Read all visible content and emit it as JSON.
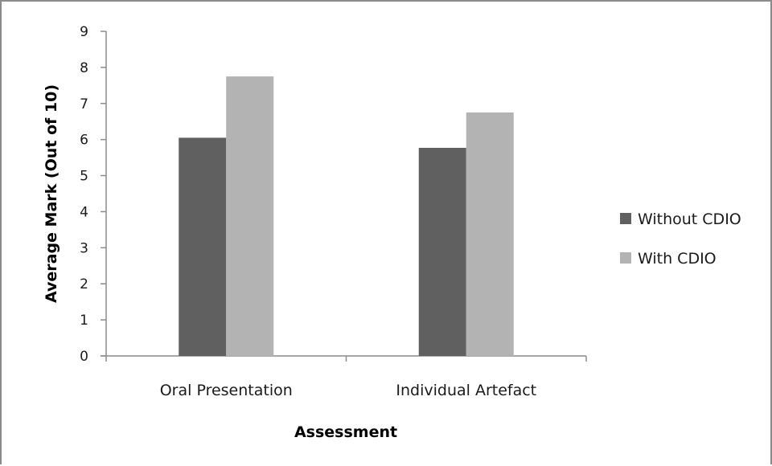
{
  "chart_data": {
    "type": "bar",
    "title": "",
    "xlabel": "Assessment",
    "ylabel": "Average Mark (Out of 10)",
    "ylim": [
      0,
      9
    ],
    "yticks": [
      0,
      1,
      2,
      3,
      4,
      5,
      6,
      7,
      8,
      9
    ],
    "categories": [
      "Oral Presentation",
      "Individual Artefact"
    ],
    "series": [
      {
        "name": "Without CDIO",
        "color": "#606060",
        "values": [
          6.05,
          5.77
        ]
      },
      {
        "name": "With CDIO",
        "color": "#b3b3b3",
        "values": [
          7.75,
          6.75
        ]
      }
    ],
    "grid": false,
    "legend_position": "right"
  }
}
